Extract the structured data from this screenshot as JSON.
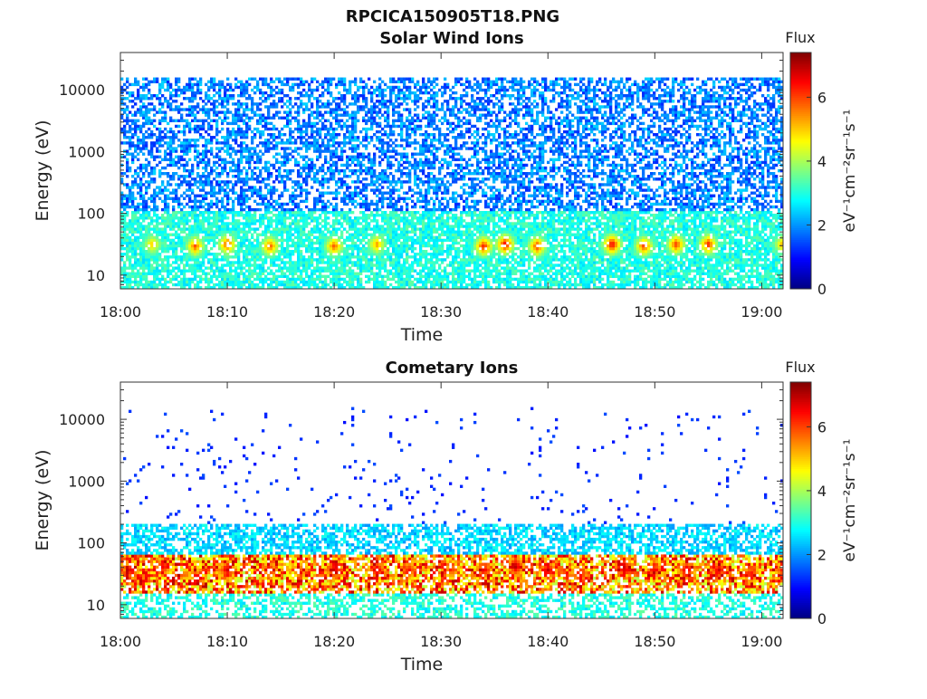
{
  "figure": {
    "title": "RPCICA150905T18.PNG"
  },
  "colorbar": {
    "label": "Flux",
    "unit": "eV⁻¹cm⁻²sr⁻¹s⁻¹",
    "ticks": [
      "0",
      "2",
      "4",
      "6"
    ],
    "range": [
      0,
      7.4
    ],
    "colormap": "jet"
  },
  "chart_data": [
    {
      "type": "heatmap",
      "title": "Solar Wind Ions",
      "xlabel": "Time",
      "ylabel": "Energy (eV)",
      "x_tick_labels": [
        "18:00",
        "18:10",
        "18:20",
        "18:30",
        "18:40",
        "18:50",
        "19:00"
      ],
      "x_range": [
        "18:00",
        "19:02"
      ],
      "y_tick_labels": [
        "10",
        "100",
        "1000",
        "10000"
      ],
      "y_scale": "log",
      "y_range": [
        6,
        40000
      ],
      "flux_range": [
        0,
        7.4
      ],
      "description_bands": [
        {
          "energy_eV": [
            6,
            100
          ],
          "flux_typical": [
            2.5,
            3.5
          ]
        },
        {
          "energy_eV": [
            100,
            15000
          ],
          "flux_typical": [
            1.2,
            2.5
          ]
        }
      ],
      "peaks": [
        {
          "time": "18:03",
          "energy_eV": 30,
          "flux": 5.2
        },
        {
          "time": "18:07",
          "energy_eV": 28,
          "flux": 6.0
        },
        {
          "time": "18:10",
          "energy_eV": 30,
          "flux": 6.2
        },
        {
          "time": "18:14",
          "energy_eV": 28,
          "flux": 6.0
        },
        {
          "time": "18:20",
          "energy_eV": 28,
          "flux": 6.0
        },
        {
          "time": "18:24",
          "energy_eV": 30,
          "flux": 5.5
        },
        {
          "time": "18:34",
          "energy_eV": 28,
          "flux": 6.5
        },
        {
          "time": "18:36",
          "energy_eV": 30,
          "flux": 6.8
        },
        {
          "time": "18:39",
          "energy_eV": 28,
          "flux": 6.3
        },
        {
          "time": "18:46",
          "energy_eV": 30,
          "flux": 6.9
        },
        {
          "time": "18:49",
          "energy_eV": 28,
          "flux": 6.2
        },
        {
          "time": "18:52",
          "energy_eV": 30,
          "flux": 6.3
        },
        {
          "time": "18:55",
          "energy_eV": 30,
          "flux": 6.4
        },
        {
          "time": "19:02",
          "energy_eV": 30,
          "flux": 5.5
        }
      ]
    },
    {
      "type": "heatmap",
      "title": "Cometary Ions",
      "xlabel": "Time",
      "ylabel": "Energy (eV)",
      "x_tick_labels": [
        "18:00",
        "18:10",
        "18:20",
        "18:30",
        "18:40",
        "18:50",
        "19:00"
      ],
      "x_range": [
        "18:00",
        "19:02"
      ],
      "y_tick_labels": [
        "10",
        "100",
        "1000",
        "10000"
      ],
      "y_scale": "log",
      "y_range": [
        6,
        40000
      ],
      "flux_range": [
        0,
        7.4
      ],
      "description_bands": [
        {
          "energy_eV": [
            6,
            15
          ],
          "flux_typical": [
            2.5,
            3.5
          ]
        },
        {
          "energy_eV": [
            15,
            60
          ],
          "flux_typical": [
            4.0,
            7.0
          ]
        },
        {
          "energy_eV": [
            60,
            200
          ],
          "flux_typical": [
            2.0,
            3.0
          ]
        },
        {
          "energy_eV": [
            200,
            20000
          ],
          "flux_typical": [
            1.0,
            1.5
          ],
          "sparse": true
        }
      ],
      "peaks": [
        {
          "time": "18:01",
          "energy_eV": 35,
          "flux": 6.8
        },
        {
          "time": "18:04",
          "energy_eV": 40,
          "flux": 6.8
        },
        {
          "time": "18:07",
          "energy_eV": 30,
          "flux": 6.0
        },
        {
          "time": "18:10",
          "energy_eV": 35,
          "flux": 6.9
        },
        {
          "time": "18:14",
          "energy_eV": 35,
          "flux": 6.5
        },
        {
          "time": "18:17",
          "energy_eV": 35,
          "flux": 6.0
        },
        {
          "time": "18:20",
          "energy_eV": 35,
          "flux": 7.0
        },
        {
          "time": "18:24",
          "energy_eV": 35,
          "flux": 7.0
        },
        {
          "time": "18:27",
          "energy_eV": 35,
          "flux": 6.5
        },
        {
          "time": "18:31",
          "energy_eV": 35,
          "flux": 6.2
        },
        {
          "time": "18:34",
          "energy_eV": 35,
          "flux": 6.8
        },
        {
          "time": "18:37",
          "energy_eV": 40,
          "flux": 7.2
        },
        {
          "time": "18:40",
          "energy_eV": 35,
          "flux": 7.0
        },
        {
          "time": "18:43",
          "energy_eV": 30,
          "flux": 6.8
        },
        {
          "time": "18:47",
          "energy_eV": 40,
          "flux": 7.3
        },
        {
          "time": "18:50",
          "energy_eV": 35,
          "flux": 6.6
        },
        {
          "time": "18:53",
          "energy_eV": 35,
          "flux": 7.0
        },
        {
          "time": "18:56",
          "energy_eV": 35,
          "flux": 6.9
        },
        {
          "time": "18:59",
          "energy_eV": 30,
          "flux": 6.7
        },
        {
          "time": "19:02",
          "energy_eV": 35,
          "flux": 6.5
        }
      ]
    }
  ]
}
